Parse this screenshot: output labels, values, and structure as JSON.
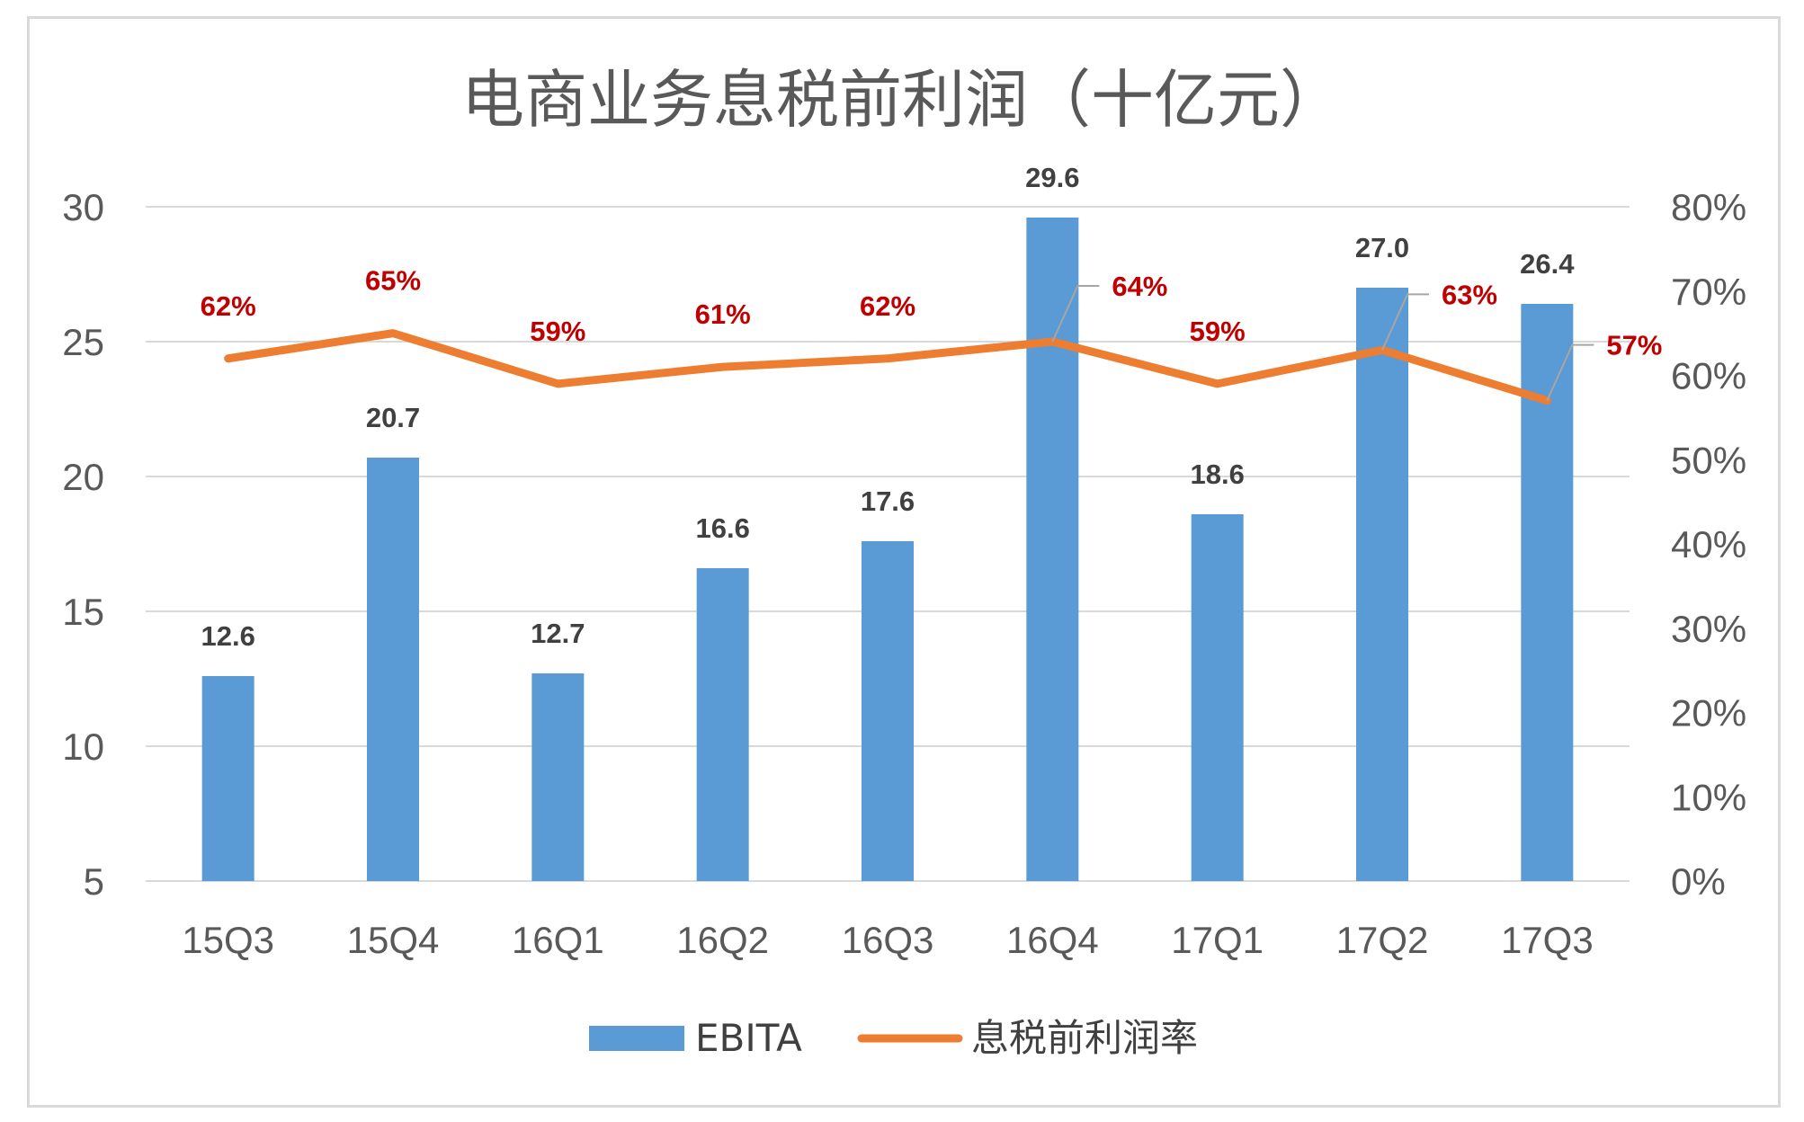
{
  "chart_data": {
    "type": "bar",
    "title": "电商业务息税前利润（十亿元）",
    "categories": [
      "15Q3",
      "15Q4",
      "16Q1",
      "16Q2",
      "16Q3",
      "16Q4",
      "17Q1",
      "17Q2",
      "17Q3"
    ],
    "series": [
      {
        "name": "EBITA",
        "type": "bar",
        "axis": "left",
        "color": "#5b9bd5",
        "values": [
          12.6,
          20.7,
          12.7,
          16.6,
          17.6,
          29.6,
          18.6,
          27.0,
          26.4
        ],
        "labels": [
          "12.6",
          "20.7",
          "12.7",
          "16.6",
          "17.6",
          "29.6",
          "18.6",
          "27.0",
          "26.4"
        ]
      },
      {
        "name": "息税前利润率",
        "type": "line",
        "axis": "right",
        "color": "#ed7d31",
        "values": [
          0.62,
          0.65,
          0.59,
          0.61,
          0.62,
          0.64,
          0.59,
          0.63,
          0.57
        ],
        "labels": [
          "62%",
          "65%",
          "59%",
          "61%",
          "62%",
          "64%",
          "59%",
          "63%",
          "57%"
        ],
        "label_color": "#c00000"
      }
    ],
    "y_left": {
      "ylim": [
        5,
        30
      ],
      "ticks": [
        "5",
        "10",
        "15",
        "20",
        "25",
        "30"
      ]
    },
    "y_right": {
      "ylim": [
        0,
        0.8
      ],
      "ticks": [
        "0%",
        "10%",
        "20%",
        "30%",
        "40%",
        "50%",
        "60%",
        "70%",
        "80%"
      ]
    },
    "grid": true,
    "legend": "bottom"
  }
}
